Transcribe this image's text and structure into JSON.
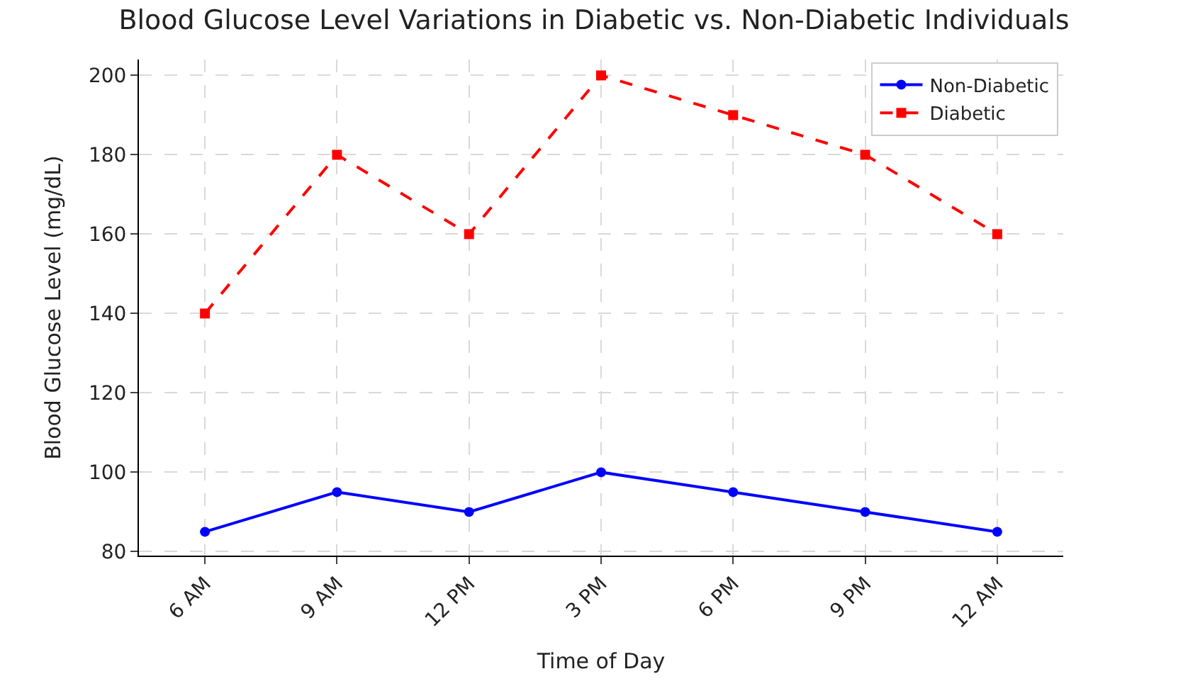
{
  "chart_data": {
    "type": "line",
    "title": "Blood Glucose Level Variations in Diabetic vs. Non-Diabetic Individuals",
    "xlabel": "Time of Day",
    "ylabel": "Blood Glucose Level (mg/dL)",
    "categories": [
      "6 AM",
      "9 AM",
      "12 PM",
      "3 PM",
      "6 PM",
      "9 PM",
      "12 AM"
    ],
    "series": [
      {
        "name": "Non-Diabetic",
        "color": "#0000ff",
        "marker": "circle",
        "line_style": "solid",
        "values": [
          85,
          95,
          90,
          100,
          95,
          90,
          85
        ]
      },
      {
        "name": "Diabetic",
        "color": "#ff0000",
        "marker": "square",
        "line_style": "dashed",
        "values": [
          140,
          180,
          160,
          200,
          190,
          180,
          160
        ]
      }
    ],
    "ylim": [
      79,
      204
    ],
    "yticks": [
      80,
      100,
      120,
      140,
      160,
      180,
      200
    ],
    "grid": true,
    "legend": "top right"
  }
}
